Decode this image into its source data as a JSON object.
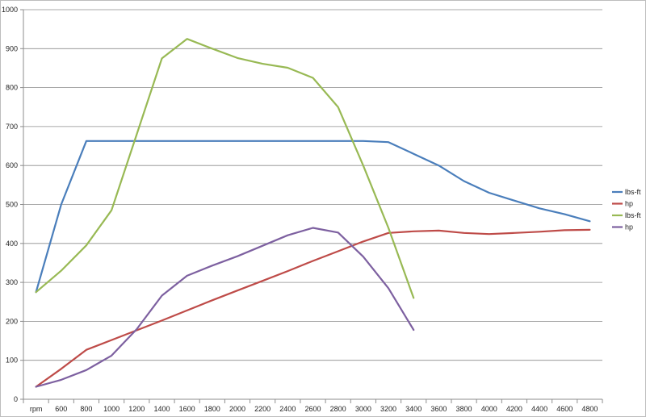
{
  "chart_data": {
    "type": "line",
    "title": "",
    "xlabel": "",
    "ylabel": "",
    "categories": [
      "rpm",
      "600",
      "800",
      "1000",
      "1200",
      "1400",
      "1600",
      "1800",
      "2000",
      "2200",
      "2400",
      "2600",
      "2800",
      "3000",
      "3200",
      "3400",
      "3600",
      "3800",
      "4000",
      "4200",
      "4400",
      "4600",
      "4800"
    ],
    "ylim": [
      0,
      1000
    ],
    "yticks": [
      0,
      100,
      200,
      300,
      400,
      500,
      600,
      700,
      800,
      900,
      1000
    ],
    "grid": true,
    "legend_position": "right",
    "series": [
      {
        "name": "lbs-ft",
        "color": "#4a7ebb",
        "values": [
          275,
          500,
          663,
          663,
          663,
          663,
          663,
          663,
          663,
          663,
          663,
          663,
          663,
          663,
          660,
          630,
          600,
          560,
          530,
          510,
          490,
          475,
          457
        ]
      },
      {
        "name": "hp",
        "color": "#be4b48",
        "values": [
          32,
          78,
          127,
          152,
          177,
          202,
          228,
          254,
          279,
          304,
          329,
          355,
          380,
          405,
          427,
          431,
          433,
          427,
          424,
          427,
          430,
          434,
          435
        ]
      },
      {
        "name": "lbs-ft",
        "color": "#98b954",
        "values": [
          275,
          330,
          395,
          485,
          680,
          875,
          925,
          900,
          876,
          861,
          851,
          825,
          750,
          600,
          440,
          260,
          null,
          null,
          null,
          null,
          null,
          null,
          null
        ]
      },
      {
        "name": "hp",
        "color": "#7d60a0",
        "values": [
          32,
          50,
          75,
          112,
          180,
          266,
          317,
          343,
          367,
          394,
          421,
          440,
          428,
          366,
          285,
          178,
          null,
          null,
          null,
          null,
          null,
          null,
          null
        ]
      }
    ]
  }
}
